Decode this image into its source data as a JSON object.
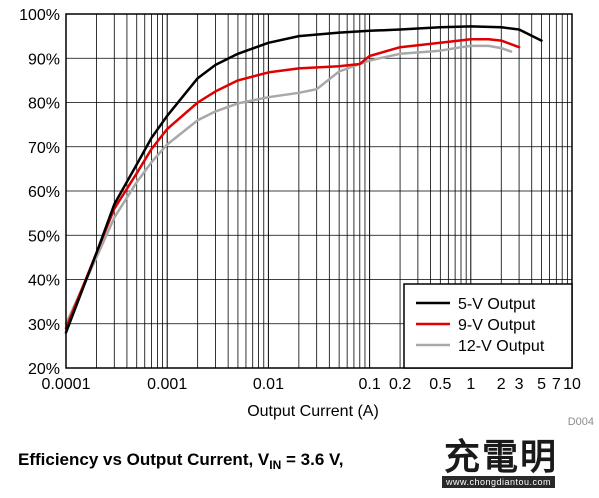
{
  "chart_data": {
    "type": "line",
    "xlabel": "Output Current (A)",
    "ylabel": "",
    "xscale": "log",
    "xlim": [
      0.0001,
      10
    ],
    "ylim": [
      20,
      100
    ],
    "grid": true,
    "legend_position": "bottom-right",
    "x_tick_labels": [
      "0.0001",
      "0.001",
      "0.01",
      "0.1",
      "0.2",
      "0.5",
      "1",
      "2",
      "3",
      "5",
      "7",
      "10"
    ],
    "x_tick_values": [
      0.0001,
      0.001,
      0.01,
      0.1,
      0.2,
      0.5,
      1,
      2,
      3,
      5,
      7,
      10
    ],
    "y_tick_labels": [
      "20%",
      "30%",
      "40%",
      "50%",
      "60%",
      "70%",
      "80%",
      "90%",
      "100%"
    ],
    "y_tick_values": [
      20,
      30,
      40,
      50,
      60,
      70,
      80,
      90,
      100
    ],
    "series": [
      {
        "name": "5-V Output",
        "color": "#000000",
        "x": [
          0.0001,
          0.0002,
          0.0003,
          0.0005,
          0.0007,
          0.001,
          0.002,
          0.003,
          0.005,
          0.01,
          0.02,
          0.05,
          0.1,
          0.2,
          0.5,
          1,
          2,
          3,
          5
        ],
        "y": [
          28,
          46,
          57,
          66,
          72,
          77,
          85.5,
          88.5,
          91,
          93.5,
          95,
          95.8,
          96.2,
          96.5,
          97,
          97.2,
          97,
          96.5,
          94
        ]
      },
      {
        "name": "9-V Output",
        "color": "#e00000",
        "x": [
          0.0001,
          0.0002,
          0.0003,
          0.0005,
          0.0007,
          0.001,
          0.002,
          0.003,
          0.005,
          0.01,
          0.02,
          0.05,
          0.08,
          0.1,
          0.2,
          0.5,
          1,
          1.5,
          2,
          3
        ],
        "y": [
          29,
          46,
          56,
          64,
          69.5,
          74,
          80,
          82.5,
          85,
          86.8,
          87.7,
          88.2,
          88.7,
          90.5,
          92.5,
          93.5,
          94.3,
          94.3,
          94,
          92.5
        ]
      },
      {
        "name": "12-V Output",
        "color": "#a8a8a8",
        "x": [
          0.0001,
          0.0002,
          0.0003,
          0.0005,
          0.0007,
          0.001,
          0.002,
          0.003,
          0.005,
          0.01,
          0.02,
          0.03,
          0.05,
          0.1,
          0.2,
          0.5,
          0.8,
          1,
          1.5,
          2,
          2.5
        ],
        "y": [
          30,
          45,
          54,
          62,
          66.5,
          70.5,
          76,
          78,
          79.8,
          81.2,
          82.2,
          83,
          87,
          89.5,
          91,
          91.7,
          92.5,
          92.8,
          92.8,
          92.3,
          91.5
        ]
      }
    ],
    "caption": "Efficiency vs Output Current, V",
    "caption_sub": "IN",
    "caption_tail": " = 3.6 V,",
    "figure_id": "D004"
  },
  "watermark": {
    "main": "充電明",
    "url": "www.chongdiantou.com"
  }
}
